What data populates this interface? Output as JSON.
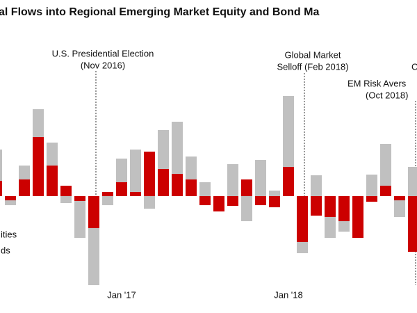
{
  "chart_data": {
    "type": "bar",
    "stacked": true,
    "title": "al Flows into Regional Emerging Market Equity and Bond Ma",
    "categories": [
      null,
      null,
      null,
      null,
      null,
      null,
      null,
      null,
      null,
      "Jan '17",
      null,
      null,
      null,
      null,
      null,
      null,
      null,
      null,
      null,
      null,
      null,
      "Jan '18",
      null,
      null,
      null,
      null,
      null,
      null,
      null,
      null,
      null
    ],
    "series": [
      {
        "name": "ities",
        "color": "#cc0000",
        "values": [
          2.2,
          -0.6,
          2.4,
          8.5,
          4.4,
          1.5,
          -0.7,
          -4.6,
          0.6,
          2.0,
          0.6,
          6.4,
          3.9,
          3.2,
          2.4,
          -1.3,
          -2.2,
          -1.4,
          2.4,
          -1.3,
          -1.6,
          4.2,
          -6.6,
          -2.8,
          -3.0,
          -3.6,
          -6.0,
          -0.8,
          1.5,
          -0.6,
          -8.0
        ]
      },
      {
        "name": "ds",
        "color": "#c0c0c0",
        "values": [
          4.5,
          -0.7,
          2.0,
          4.0,
          3.3,
          -1.0,
          -5.3,
          -8.2,
          -1.3,
          3.4,
          6.1,
          -1.8,
          5.6,
          7.5,
          3.3,
          2.0,
          0,
          4.6,
          -3.6,
          5.2,
          0.8,
          10.2,
          -1.6,
          3.0,
          -3.0,
          -1.5,
          0,
          3.1,
          6.0,
          -2.4,
          4.2
        ]
      }
    ],
    "ylim": [
      -13,
      15
    ],
    "annotations": [
      {
        "text": [
          "U.S. Presidential Election",
          "(Nov 2016)"
        ]
      },
      {
        "text": [
          "Global Market",
          "Selloff (Feb 2018)"
        ]
      },
      {
        "text": [
          "EM Risk Avers",
          "(Oct 2018)"
        ]
      },
      {
        "text": [
          "C"
        ]
      }
    ]
  }
}
